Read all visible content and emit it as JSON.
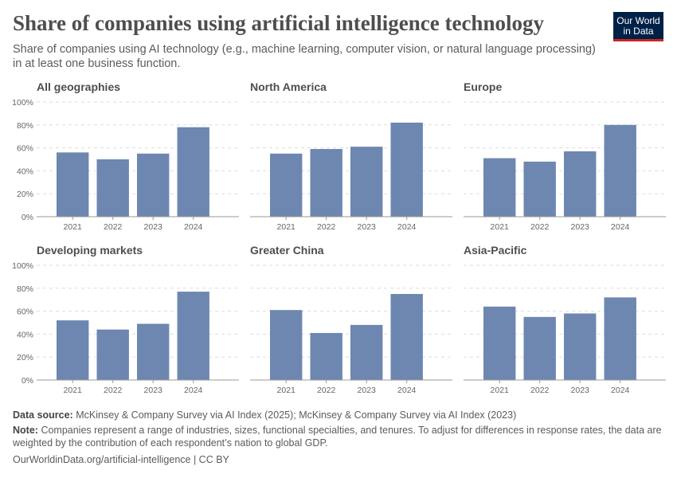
{
  "title": "Share of companies using artificial intelligence technology",
  "subtitle": "Share of companies using AI technology (e.g., machine learning, computer vision, or natural language processing) in at least one business function.",
  "logo": {
    "line1": "Our World",
    "line2": "in Data",
    "bg": "#002147",
    "accent": "#ce261e"
  },
  "footer": {
    "source_label": "Data source:",
    "source": "McKinsey & Company Survey via AI Index (2025); McKinsey & Company Survey via AI Index (2023)",
    "note_label": "Note:",
    "note": "Companies represent a range of industries, sizes, functional specialties, and tenures. To adjust for differences in response rates, the data are weighted by the contribution of each respondent’s nation to global GDP.",
    "url": "OurWorldinData.org/artificial-intelligence | CC BY"
  },
  "chart_data": {
    "type": "bar",
    "bar_color": "#6d87b0",
    "categories": [
      "2021",
      "2022",
      "2023",
      "2024"
    ],
    "ylim": [
      0,
      100
    ],
    "yticks": [
      "0%",
      "20%",
      "40%",
      "60%",
      "80%",
      "100%"
    ],
    "grid": true,
    "panels": [
      {
        "title": "All geographies",
        "values": [
          56,
          50,
          55,
          78
        ]
      },
      {
        "title": "North America",
        "values": [
          55,
          59,
          61,
          82
        ]
      },
      {
        "title": "Europe",
        "values": [
          51,
          48,
          57,
          80
        ]
      },
      {
        "title": "Developing markets",
        "values": [
          52,
          44,
          49,
          77
        ]
      },
      {
        "title": "Greater China",
        "values": [
          61,
          41,
          48,
          75
        ]
      },
      {
        "title": "Asia-Pacific",
        "values": [
          64,
          55,
          58,
          72
        ]
      }
    ]
  }
}
